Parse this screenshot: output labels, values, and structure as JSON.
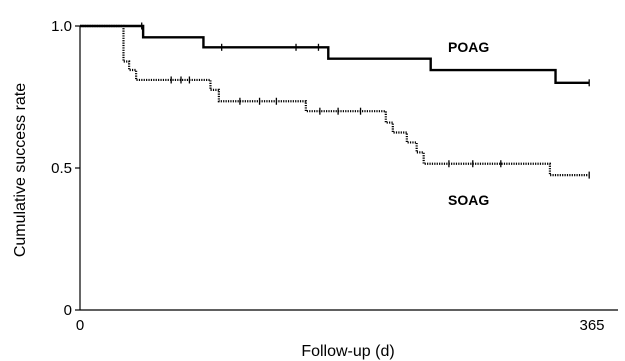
{
  "chart_data": {
    "type": "line",
    "subtype": "kaplan-meier-step",
    "xlabel": "Follow-up (d)",
    "ylabel": "Cumulative success rate",
    "xlim": [
      0,
      365
    ],
    "ylim": [
      0,
      1.0
    ],
    "x_ticks": [
      {
        "value": 0,
        "label": "0"
      },
      {
        "value": 365,
        "label": "365"
      }
    ],
    "y_ticks": [
      {
        "value": 0,
        "label": "0"
      },
      {
        "value": 0.5,
        "label": "0.5"
      },
      {
        "value": 1.0,
        "label": "1.0"
      }
    ],
    "grid": false,
    "series": [
      {
        "name": "POAG",
        "style": "solid",
        "color": "#000000",
        "steps": [
          [
            0,
            1.0
          ],
          [
            45,
            0.96
          ],
          [
            88,
            0.925
          ],
          [
            177,
            0.885
          ],
          [
            250,
            0.845
          ],
          [
            339,
            0.8
          ]
        ],
        "end_x": 363,
        "censored": [
          [
            44,
            1.0
          ],
          [
            101,
            0.925
          ],
          [
            154,
            0.925
          ],
          [
            170,
            0.925
          ],
          [
            363,
            0.8
          ]
        ]
      },
      {
        "name": "SOAG",
        "style": "dotted",
        "color": "#000000",
        "steps": [
          [
            0,
            1.0
          ],
          [
            31,
            0.875
          ],
          [
            35,
            0.845
          ],
          [
            40,
            0.81
          ],
          [
            93,
            0.775
          ],
          [
            99,
            0.735
          ],
          [
            161,
            0.7
          ],
          [
            218,
            0.66
          ],
          [
            223,
            0.625
          ],
          [
            233,
            0.59
          ],
          [
            240,
            0.555
          ],
          [
            245,
            0.515
          ],
          [
            335,
            0.475
          ]
        ],
        "end_x": 363,
        "censored": [
          [
            65,
            0.81
          ],
          [
            72,
            0.81
          ],
          [
            78,
            0.81
          ],
          [
            114,
            0.735
          ],
          [
            128,
            0.735
          ],
          [
            140,
            0.735
          ],
          [
            171,
            0.7
          ],
          [
            184,
            0.7
          ],
          [
            200,
            0.7
          ],
          [
            263,
            0.515
          ],
          [
            280,
            0.515
          ],
          [
            300,
            0.515
          ],
          [
            363,
            0.475
          ]
        ]
      }
    ]
  }
}
